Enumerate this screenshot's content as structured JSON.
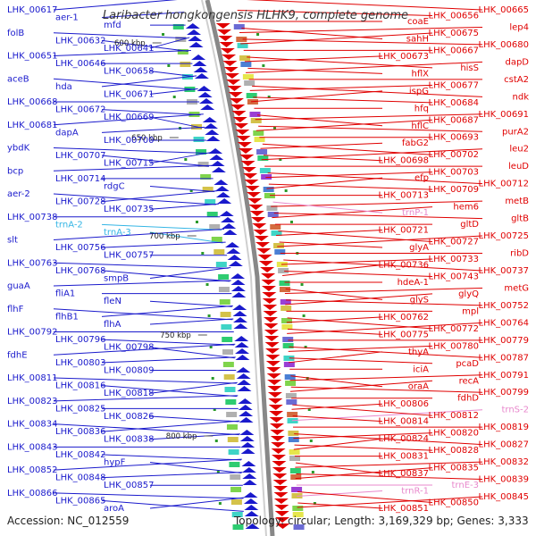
{
  "title": "Laribacter hongkongensis HLHK9, complete genome",
  "accession": "Accession: NC_012559",
  "topology": "Topology: circular; Length: 3,169,329 bp; Genes: 3,333",
  "colors": {
    "forward": "#1a1acc",
    "reverse": "#e00000",
    "rrna_fwd": "#33b5e5",
    "rrna_rev": "#e888cc"
  },
  "scale_marks": [
    "600 kbp",
    "650 kbp",
    "700 kbp",
    "750 kbp",
    "800 kbp"
  ],
  "left_labels": [
    {
      "t": "LHK_00617",
      "c": "fwd"
    },
    {
      "t": "aer-1",
      "c": "fwd"
    },
    {
      "t": "mfd",
      "c": "fwd"
    },
    {
      "t": "folB",
      "c": "fwd"
    },
    {
      "t": "LHK_00632",
      "c": "fwd"
    },
    {
      "t": "LHK_00641",
      "c": "fwd"
    },
    {
      "t": "LHK_00651",
      "c": "fwd"
    },
    {
      "t": "LHK_00646",
      "c": "fwd"
    },
    {
      "t": "LHK_00658",
      "c": "fwd"
    },
    {
      "t": "aceB",
      "c": "fwd"
    },
    {
      "t": "hda",
      "c": "fwd"
    },
    {
      "t": "LHK_00671",
      "c": "fwd"
    },
    {
      "t": "LHK_00668",
      "c": "fwd"
    },
    {
      "t": "LHK_00672",
      "c": "fwd"
    },
    {
      "t": "LHK_00669",
      "c": "fwd"
    },
    {
      "t": "LHK_00681",
      "c": "fwd"
    },
    {
      "t": "dapA",
      "c": "fwd"
    },
    {
      "t": "LHK_00700",
      "c": "fwd"
    },
    {
      "t": "ybdK",
      "c": "fwd"
    },
    {
      "t": "LHK_00707",
      "c": "fwd"
    },
    {
      "t": "LHK_00715",
      "c": "fwd"
    },
    {
      "t": "bcp",
      "c": "fwd"
    },
    {
      "t": "LHK_00714",
      "c": "fwd"
    },
    {
      "t": "rdgC",
      "c": "fwd"
    },
    {
      "t": "aer-2",
      "c": "fwd"
    },
    {
      "t": "LHK_00728",
      "c": "fwd"
    },
    {
      "t": "LHK_00735",
      "c": "fwd"
    },
    {
      "t": "LHK_00738",
      "c": "fwd"
    },
    {
      "t": "trnA-2",
      "c": "rna"
    },
    {
      "t": "trnA-3",
      "c": "rna"
    },
    {
      "t": "slt",
      "c": "fwd"
    },
    {
      "t": "LHK_00756",
      "c": "fwd"
    },
    {
      "t": "LHK_00757",
      "c": "fwd"
    },
    {
      "t": "LHK_00763",
      "c": "fwd"
    },
    {
      "t": "LHK_00768",
      "c": "fwd"
    },
    {
      "t": "smpB",
      "c": "fwd"
    },
    {
      "t": "guaA",
      "c": "fwd"
    },
    {
      "t": "fliA1",
      "c": "fwd"
    },
    {
      "t": "fleN",
      "c": "fwd"
    },
    {
      "t": "flhF",
      "c": "fwd"
    },
    {
      "t": "flhB1",
      "c": "fwd"
    },
    {
      "t": "flhA",
      "c": "fwd"
    },
    {
      "t": "LHK_00792",
      "c": "fwd"
    },
    {
      "t": "LHK_00796",
      "c": "fwd"
    },
    {
      "t": "LHK_00798",
      "c": "fwd"
    },
    {
      "t": "fdhE",
      "c": "fwd"
    },
    {
      "t": "LHK_00803",
      "c": "fwd"
    },
    {
      "t": "LHK_00809",
      "c": "fwd"
    },
    {
      "t": "LHK_00811",
      "c": "fwd"
    },
    {
      "t": "LHK_00816",
      "c": "fwd"
    },
    {
      "t": "LHK_00818",
      "c": "fwd"
    },
    {
      "t": "LHK_00823",
      "c": "fwd"
    },
    {
      "t": "LHK_00825",
      "c": "fwd"
    },
    {
      "t": "LHK_00826",
      "c": "fwd"
    },
    {
      "t": "LHK_00834",
      "c": "fwd"
    },
    {
      "t": "LHK_00836",
      "c": "fwd"
    },
    {
      "t": "LHK_00838",
      "c": "fwd"
    },
    {
      "t": "LHK_00843",
      "c": "fwd"
    },
    {
      "t": "LHK_00842",
      "c": "fwd"
    },
    {
      "t": "hypF",
      "c": "fwd"
    },
    {
      "t": "LHK_00852",
      "c": "fwd"
    },
    {
      "t": "LHK_00848",
      "c": "fwd"
    },
    {
      "t": "LHK_00857",
      "c": "fwd"
    },
    {
      "t": "LHK_00866",
      "c": "fwd"
    },
    {
      "t": "LHK_00865",
      "c": "fwd"
    },
    {
      "t": "aroA",
      "c": "fwd"
    }
  ],
  "right_labels": [
    {
      "t": "LHK_00665",
      "c": "rev"
    },
    {
      "t": "LHK_00656",
      "c": "rev"
    },
    {
      "t": "coaE",
      "c": "rev"
    },
    {
      "t": "lep4",
      "c": "rev"
    },
    {
      "t": "LHK_00675",
      "c": "rev"
    },
    {
      "t": "sahH",
      "c": "rev"
    },
    {
      "t": "LHK_00680",
      "c": "rev"
    },
    {
      "t": "LHK_00667",
      "c": "rev"
    },
    {
      "t": "LHK_00673",
      "c": "rev"
    },
    {
      "t": "dapD",
      "c": "rev"
    },
    {
      "t": "hisS",
      "c": "rev"
    },
    {
      "t": "hflX",
      "c": "rev"
    },
    {
      "t": "cstA2",
      "c": "rev"
    },
    {
      "t": "LHK_00677",
      "c": "rev"
    },
    {
      "t": "ispG",
      "c": "rev"
    },
    {
      "t": "ndk",
      "c": "rev"
    },
    {
      "t": "LHK_00684",
      "c": "rev"
    },
    {
      "t": "hfq",
      "c": "rev"
    },
    {
      "t": "LHK_00691",
      "c": "rev"
    },
    {
      "t": "LHK_00687",
      "c": "rev"
    },
    {
      "t": "hflC",
      "c": "rev"
    },
    {
      "t": "purA2",
      "c": "rev"
    },
    {
      "t": "LHK_00693",
      "c": "rev"
    },
    {
      "t": "fabG2",
      "c": "rev"
    },
    {
      "t": "leu2",
      "c": "rev"
    },
    {
      "t": "LHK_00702",
      "c": "rev"
    },
    {
      "t": "LHK_00698",
      "c": "rev"
    },
    {
      "t": "leuD",
      "c": "rev"
    },
    {
      "t": "LHK_00703",
      "c": "rev"
    },
    {
      "t": "efp",
      "c": "rev"
    },
    {
      "t": "LHK_00712",
      "c": "rev"
    },
    {
      "t": "LHK_00709",
      "c": "rev"
    },
    {
      "t": "LHK_00713",
      "c": "rev"
    },
    {
      "t": "metB",
      "c": "rev"
    },
    {
      "t": "hem6",
      "c": "rev"
    },
    {
      "t": "trnP-1",
      "c": "rna"
    },
    {
      "t": "gltB",
      "c": "rev"
    },
    {
      "t": "gltD",
      "c": "rev"
    },
    {
      "t": "LHK_00721",
      "c": "rev"
    },
    {
      "t": "LHK_00725",
      "c": "rev"
    },
    {
      "t": "LHK_00727",
      "c": "rev"
    },
    {
      "t": "glyA",
      "c": "rev"
    },
    {
      "t": "ribD",
      "c": "rev"
    },
    {
      "t": "LHK_00733",
      "c": "rev"
    },
    {
      "t": "LHK_00736",
      "c": "rev"
    },
    {
      "t": "LHK_00737",
      "c": "rev"
    },
    {
      "t": "LHK_00743",
      "c": "rev"
    },
    {
      "t": "hdeA-1",
      "c": "rev"
    },
    {
      "t": "metG",
      "c": "rev"
    },
    {
      "t": "glyQ",
      "c": "rev"
    },
    {
      "t": "glyS",
      "c": "rev"
    },
    {
      "t": "LHK_00752",
      "c": "rev"
    },
    {
      "t": "mpl",
      "c": "rev"
    },
    {
      "t": "LHK_00762",
      "c": "rev"
    },
    {
      "t": "LHK_00764",
      "c": "rev"
    },
    {
      "t": "LHK_00772",
      "c": "rev"
    },
    {
      "t": "LHK_00775",
      "c": "rev"
    },
    {
      "t": "LHK_00779",
      "c": "rev"
    },
    {
      "t": "LHK_00780",
      "c": "rev"
    },
    {
      "t": "thyA",
      "c": "rev"
    },
    {
      "t": "LHK_00787",
      "c": "rev"
    },
    {
      "t": "pcaD",
      "c": "rev"
    },
    {
      "t": "iciA",
      "c": "rev"
    },
    {
      "t": "LHK_00791",
      "c": "rev"
    },
    {
      "t": "recA",
      "c": "rev"
    },
    {
      "t": "oraA",
      "c": "rev"
    },
    {
      "t": "LHK_00799",
      "c": "rev"
    },
    {
      "t": "fdhD",
      "c": "rev"
    },
    {
      "t": "LHK_00806",
      "c": "rev"
    },
    {
      "t": "trnS-2",
      "c": "rna"
    },
    {
      "t": "LHK_00812",
      "c": "rev"
    },
    {
      "t": "LHK_00814",
      "c": "rev"
    },
    {
      "t": "LHK_00819",
      "c": "rev"
    },
    {
      "t": "LHK_00820",
      "c": "rev"
    },
    {
      "t": "LHK_00824",
      "c": "rev"
    },
    {
      "t": "LHK_00827",
      "c": "rev"
    },
    {
      "t": "LHK_00828",
      "c": "rev"
    },
    {
      "t": "LHK_00831",
      "c": "rev"
    },
    {
      "t": "LHK_00832",
      "c": "rev"
    },
    {
      "t": "LHK_00835",
      "c": "rev"
    },
    {
      "t": "LHK_00837",
      "c": "rev"
    },
    {
      "t": "LHK_00839",
      "c": "rev"
    },
    {
      "t": "trnE-3",
      "c": "rna"
    },
    {
      "t": "trnR-1",
      "c": "rna"
    },
    {
      "t": "LHK_00845",
      "c": "rev"
    },
    {
      "t": "LHK_00850",
      "c": "rev"
    },
    {
      "t": "LHK_00851",
      "c": "rev"
    }
  ]
}
